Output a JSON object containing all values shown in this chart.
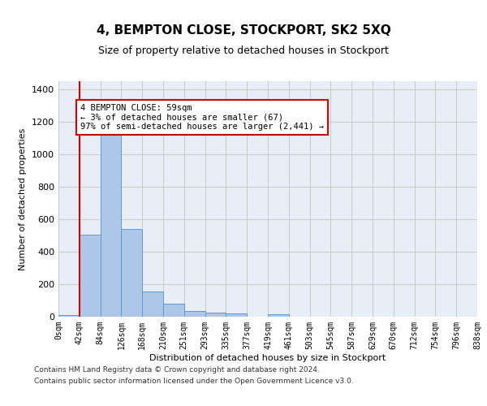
{
  "title": "4, BEMPTON CLOSE, STOCKPORT, SK2 5XQ",
  "subtitle": "Size of property relative to detached houses in Stockport",
  "xlabel": "Distribution of detached houses by size in Stockport",
  "ylabel": "Number of detached properties",
  "bin_labels": [
    "0sqm",
    "42sqm",
    "84sqm",
    "126sqm",
    "168sqm",
    "210sqm",
    "251sqm",
    "293sqm",
    "335sqm",
    "377sqm",
    "419sqm",
    "461sqm",
    "503sqm",
    "545sqm",
    "587sqm",
    "629sqm",
    "670sqm",
    "712sqm",
    "754sqm",
    "796sqm",
    "838sqm"
  ],
  "bar_values": [
    10,
    505,
    1155,
    540,
    155,
    80,
    33,
    25,
    18,
    0,
    14,
    0,
    0,
    0,
    0,
    0,
    0,
    0,
    0,
    0
  ],
  "bar_color": "#aec6e8",
  "bar_edge_color": "#5b9bd5",
  "grid_color": "#cccccc",
  "bg_color": "#e8eef7",
  "vline_x": 1.0,
  "vline_color": "#cc0000",
  "annotation_text": "4 BEMPTON CLOSE: 59sqm\n← 3% of detached houses are smaller (67)\n97% of semi-detached houses are larger (2,441) →",
  "annotation_box_color": "#cc0000",
  "ylim": [
    0,
    1450
  ],
  "yticks": [
    0,
    200,
    400,
    600,
    800,
    1000,
    1200,
    1400
  ],
  "footer_line1": "Contains HM Land Registry data © Crown copyright and database right 2024.",
  "footer_line2": "Contains public sector information licensed under the Open Government Licence v3.0."
}
